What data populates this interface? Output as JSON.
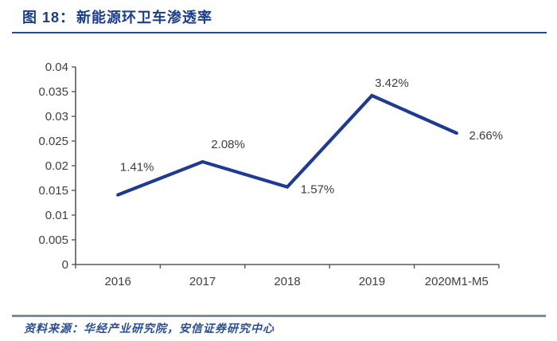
{
  "header": {
    "figure_label": "图 18：",
    "figure_title": "新能源环卫车渗透率"
  },
  "footer": {
    "source": "资料来源：华经产业研究院，安信证券研究中心"
  },
  "colors": {
    "title_blue": "#1b3c87",
    "line_navy": "#1f3a93",
    "axis_gray": "#595959",
    "tick_label_gray": "#404040",
    "data_label_gray": "#3d3d3d",
    "footer_rule_gray": "#7d8da0",
    "source_blue": "#2d4f8e"
  },
  "chart_data": {
    "type": "line",
    "title": "新能源环卫车渗透率",
    "categories": [
      "2016",
      "2017",
      "2018",
      "2019",
      "2020M1-M5"
    ],
    "values": [
      0.0141,
      0.0208,
      0.0157,
      0.0342,
      0.0266
    ],
    "point_labels": [
      "1.41%",
      "2.08%",
      "1.57%",
      "3.42%",
      "2.66%"
    ],
    "xlabel": "",
    "ylabel": "",
    "ylim": [
      0,
      0.04
    ],
    "ytick_step": 0.005,
    "ytick_labels": [
      "0",
      "0.005",
      "0.01",
      "0.015",
      "0.02",
      "0.025",
      "0.03",
      "0.035",
      "0.04"
    ],
    "grid": false,
    "legend": "none",
    "line_color": "#1f3a93"
  }
}
